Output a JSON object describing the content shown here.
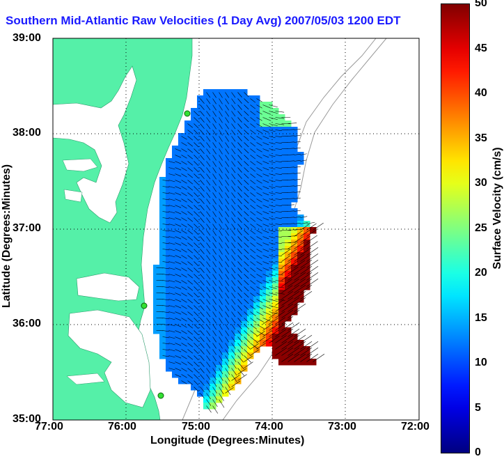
{
  "title": "Southern Mid-Atlantic Raw Velocities (1 Day Avg) 2007/05/03 1200 EDT",
  "xaxis": {
    "label": "Longitude (Degrees:Minutes)",
    "ticks": [
      "77:00",
      "76:00",
      "75:00",
      "74:00",
      "73:00",
      "72:00"
    ]
  },
  "yaxis": {
    "label": "Latitude (Degrees:Minutes)",
    "ticks": [
      "39:00",
      "38:00",
      "37:00",
      "36:00",
      "35:00"
    ]
  },
  "colorbar": {
    "label": "Surface Velocity (cm/s)",
    "ticks": [
      "50",
      "45",
      "40",
      "35",
      "30",
      "25",
      "20",
      "15",
      "10",
      "5",
      "0"
    ],
    "min": 0,
    "max": 50
  },
  "map": {
    "lon_range": [
      -77,
      -72
    ],
    "lat_range": [
      35,
      39
    ],
    "land_color": "#55f0a8",
    "grid": "dotted",
    "stations": [
      "green-dot",
      "green-dot",
      "green-dot"
    ]
  }
}
